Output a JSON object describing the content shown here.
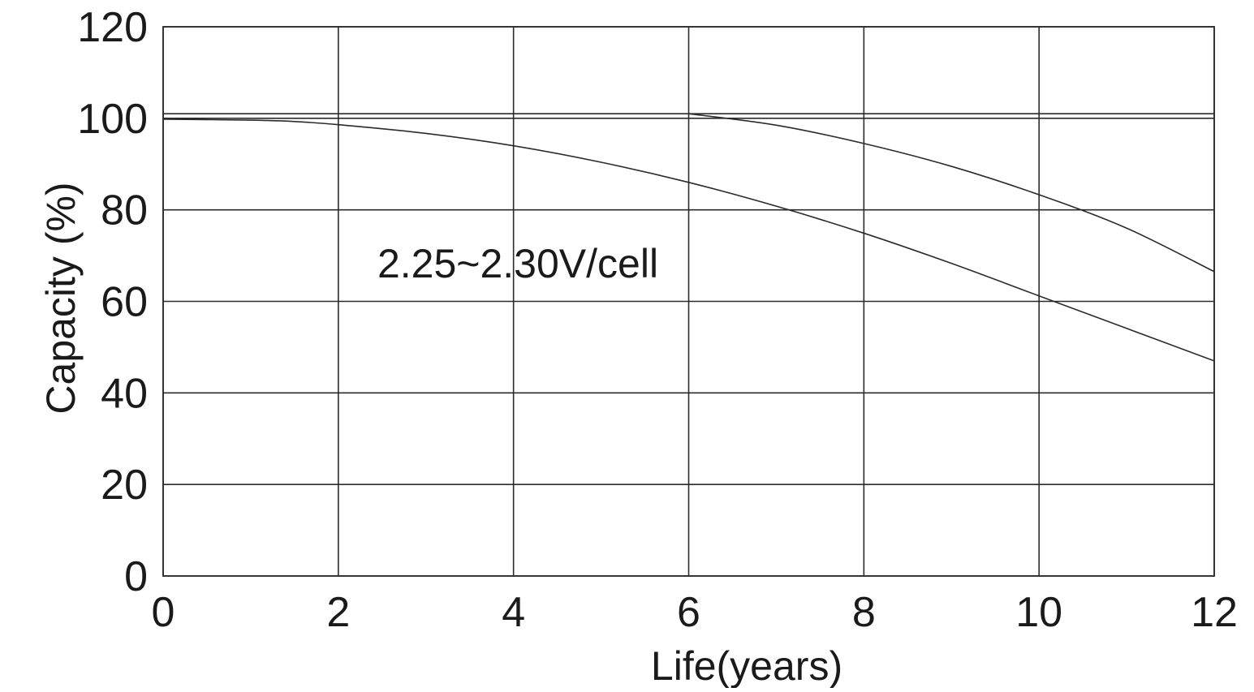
{
  "chart_data": {
    "type": "line",
    "title": "",
    "xlabel": "Life(years)",
    "ylabel": "Capacity (%)",
    "xlim": [
      0,
      12
    ],
    "ylim": [
      0,
      120
    ],
    "x_ticks": [
      0,
      2,
      4,
      6,
      8,
      10,
      12
    ],
    "y_ticks": [
      0,
      20,
      40,
      60,
      80,
      100,
      120
    ],
    "x_tick_labels": [
      "0",
      "2",
      "4",
      "6",
      "8",
      "10",
      "12"
    ],
    "y_tick_labels": [
      "0",
      "20",
      "40",
      "60",
      "80",
      "100",
      "120"
    ],
    "grid": true,
    "legend": "none",
    "annotation": "2.25~2.30V/cell",
    "reference_line_y": 101,
    "series": [
      {
        "x": [
          0,
          1,
          1.5,
          2,
          3,
          4,
          5,
          6,
          7,
          8,
          9,
          10,
          11,
          12
        ],
        "values": [
          99.8,
          99.6,
          99.3,
          98.6,
          96.7,
          94.0,
          90.4,
          86.0,
          80.8,
          74.9,
          68.3,
          61.2,
          54.1,
          47.0
        ]
      },
      {
        "x": [
          6,
          7,
          8,
          9,
          10,
          11,
          12
        ],
        "values": [
          101,
          98.5,
          94.5,
          89.5,
          83.3,
          76.0,
          66.5
        ]
      }
    ]
  }
}
